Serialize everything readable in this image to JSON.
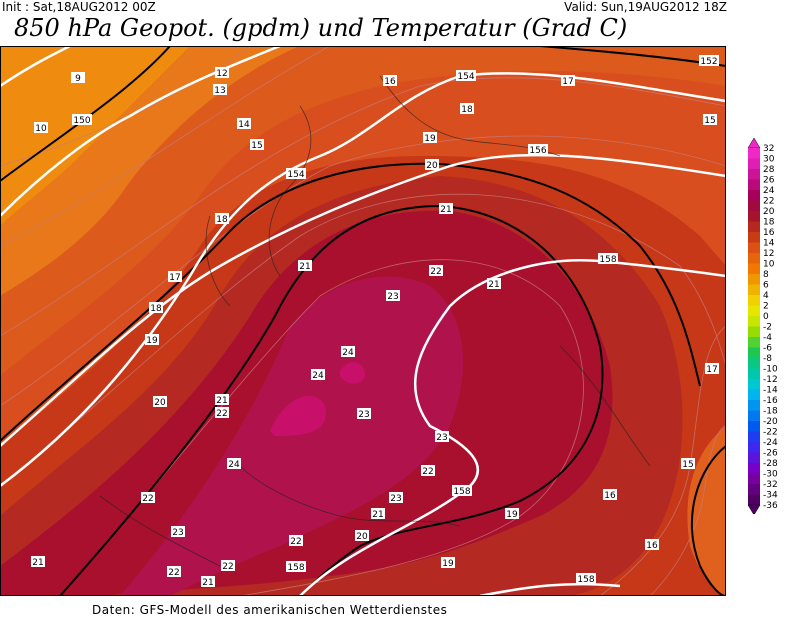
{
  "header": {
    "init": "Init : Sat,18AUG2012 00Z",
    "valid": "Valid: Sun,19AUG2012 18Z",
    "title": "850 hPa Geopot. (gpdm) und Temperatur (Grad C)"
  },
  "footer": "Daten: GFS-Modell des amerikanischen Wetterdienstes",
  "temp_labels": [
    "9",
    "12",
    "13",
    "10",
    "14",
    "15",
    "16",
    "18",
    "17",
    "18",
    "19",
    "20",
    "21",
    "22",
    "23",
    "24",
    "24",
    "23",
    "23",
    "22",
    "24",
    "22",
    "21",
    "22",
    "21",
    "20",
    "21",
    "22",
    "23",
    "22",
    "21",
    "21",
    "19",
    "19",
    "18",
    "17",
    "19",
    "20",
    "21",
    "22",
    "23",
    "15",
    "17",
    "15",
    "16",
    "16",
    "19",
    "20",
    "21",
    "22",
    "23",
    "24"
  ],
  "geo_labels": [
    "150",
    "154",
    "154",
    "156",
    "158",
    "158",
    "158",
    "158",
    "152"
  ],
  "colorbar": {
    "labels": [
      "32",
      "30",
      "28",
      "26",
      "24",
      "22",
      "20",
      "18",
      "16",
      "14",
      "12",
      "10",
      "8",
      "6",
      "4",
      "2",
      "0",
      "-2",
      "-4",
      "-6",
      "-8",
      "-10",
      "-12",
      "-14",
      "-16",
      "-18",
      "-20",
      "-22",
      "-24",
      "-26",
      "-28",
      "-30",
      "-32",
      "-34",
      "-36"
    ],
    "colors": [
      "#f028c8",
      "#e01eb4",
      "#cc1496",
      "#b80a78",
      "#a8005a",
      "#a00a3c",
      "#a5142a",
      "#b4281e",
      "#c83c14",
      "#dc5014",
      "#e6640a",
      "#f07800",
      "#f09600",
      "#f0b400",
      "#f0d200",
      "#e6e600",
      "#c8e600",
      "#96dc00",
      "#50d232",
      "#1ec850",
      "#0ac882",
      "#00c8aa",
      "#00c8d2",
      "#00b4f0",
      "#0096f0",
      "#0078f0",
      "#005af0",
      "#1e3cf0",
      "#3c28f0",
      "#5a14dc",
      "#7800c8",
      "#7800a0",
      "#640082",
      "#500064"
    ]
  }
}
